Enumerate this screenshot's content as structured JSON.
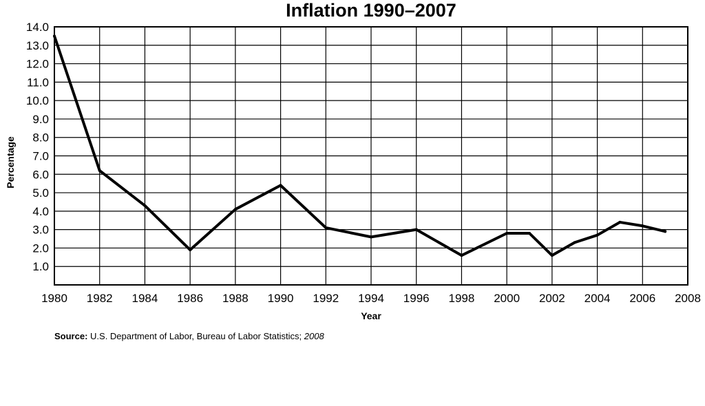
{
  "chart_data": {
    "type": "line",
    "title": "Inflation 1990–2007",
    "xlabel": "Year",
    "ylabel": "Percentage",
    "xlim": [
      1980,
      2008
    ],
    "ylim": [
      0,
      14
    ],
    "x_ticks": [
      "1980",
      "1982",
      "1984",
      "1986",
      "1988",
      "1990",
      "1992",
      "1994",
      "1996",
      "1998",
      "2000",
      "2002",
      "2004",
      "2006",
      "2008"
    ],
    "y_ticks": [
      "1.0",
      "2.0",
      "3.0",
      "4.0",
      "5.0",
      "6.0",
      "7.0",
      "8.0",
      "9.0",
      "10.0",
      "11.0",
      "12.0",
      "13.0",
      "14.0"
    ],
    "grid": true,
    "series": [
      {
        "x": [
          1980,
          1982,
          1984,
          1986,
          1988,
          1990,
          1992,
          1994,
          1996,
          1998,
          2000,
          2001,
          2002,
          2003,
          2004,
          2005,
          2006,
          2007
        ],
        "values": [
          13.5,
          6.2,
          4.3,
          1.9,
          4.1,
          5.4,
          3.1,
          2.6,
          3.0,
          1.6,
          2.8,
          2.8,
          1.6,
          2.3,
          2.7,
          3.4,
          3.2,
          2.9
        ]
      }
    ],
    "colors": {
      "line": "#000000",
      "grid": "#000000"
    }
  },
  "source": {
    "label": "Source:",
    "text": " U.S. Department of Labor, Bureau of Labor Statistics; ",
    "year": "2008"
  }
}
